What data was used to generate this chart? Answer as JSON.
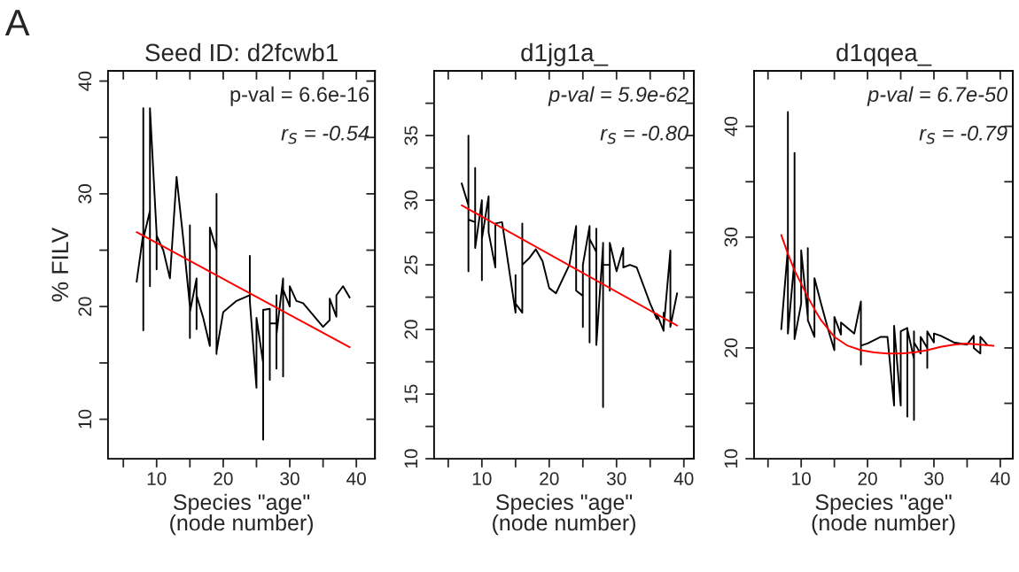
{
  "chart_data": [
    {
      "type": "line",
      "title": "Seed ID: d2fcwb1",
      "xlabel": "Species \"age\"\n(node number)",
      "ylabel": "% FILV",
      "annotations": [
        "A",
        "p-val = 6.6e-16",
        "r$_{S}$ = -0.54"
      ],
      "xlim": [
        2.7,
        42.8
      ],
      "ylim": [
        6.5,
        40.9
      ],
      "xticks": [
        {
          "value": 5,
          "label": null
        },
        10,
        {
          "value": 15,
          "label": null
        },
        20,
        {
          "value": 25,
          "label": null
        },
        30,
        {
          "value": 35,
          "label": null
        },
        40
      ],
      "yticks": [
        10,
        {
          "value": 15,
          "label": null
        },
        20,
        {
          "value": 25,
          "label": null
        },
        30,
        {
          "value": 35,
          "label": null
        },
        40
      ],
      "grid": false,
      "marker": "none",
      "line_style": "solid",
      "series": [
        {
          "color": "#000000",
          "x": [
            7,
            8,
            8,
            8,
            8,
            9,
            9,
            9,
            10,
            10,
            10,
            11,
            12,
            13,
            14,
            15,
            15,
            15,
            15,
            16,
            16,
            16,
            17,
            18,
            18,
            19,
            19,
            19,
            19,
            20,
            22,
            24,
            24,
            24,
            25,
            25,
            26,
            26,
            26,
            27,
            27,
            27,
            28,
            28,
            28,
            28,
            29,
            29,
            29,
            30,
            30,
            31,
            32,
            35,
            36,
            36,
            37,
            37,
            38,
            39
          ],
          "values": [
            22.2,
            26.5,
            37.6,
            17.9,
            26,
            28.5,
            21.8,
            37.6,
            26.5,
            23.3,
            26.3,
            25,
            22.5,
            31.5,
            26,
            20,
            27.2,
            17.2,
            19.5,
            22.5,
            18,
            21,
            19,
            16.5,
            27,
            25,
            15.8,
            30,
            16,
            19.5,
            20.5,
            21,
            24.5,
            20.5,
            12.8,
            19,
            15,
            8.2,
            19.7,
            19.8,
            13.5,
            18.5,
            18.5,
            14.5,
            21,
            17.5,
            22.5,
            13.8,
            21.5,
            20,
            21.8,
            20.5,
            20.3,
            18.2,
            18.8,
            20.7,
            19.1,
            21,
            21.8,
            20.8
          ]
        },
        {
          "color": "#ff0000",
          "x": [
            7,
            39
          ],
          "values": [
            26.6,
            16.4
          ]
        }
      ]
    },
    {
      "type": "line",
      "title": "d1jg1a_",
      "xlabel": "Species \"age\"\n(node number)",
      "annotations": [
        "p-val = 5.9e-62",
        "r$_{S}$ = -0.80"
      ],
      "xlim": [
        2.9,
        41.5
      ],
      "ylim": [
        10,
        40
      ],
      "xticks": [
        {
          "value": 5,
          "label": null
        },
        10,
        {
          "value": 15,
          "label": null
        },
        20,
        {
          "value": 25,
          "label": null
        },
        30,
        {
          "value": 35,
          "label": null
        },
        40
      ],
      "yticks": [
        10,
        {
          "value": 12.5,
          "label": null
        },
        15,
        {
          "value": 17.5,
          "label": null
        },
        20,
        {
          "value": 22.5,
          "label": null
        },
        25,
        {
          "value": 27.5,
          "label": null
        },
        30,
        {
          "value": 32.5,
          "label": null
        },
        35,
        {
          "value": 37.5,
          "label": null
        }
      ],
      "grid": false,
      "marker": "none",
      "line_style": "solid",
      "series": [
        {
          "color": "#000000",
          "x": [
            7,
            8,
            8,
            8,
            8,
            9,
            9,
            9,
            10,
            10,
            10,
            11,
            11,
            12,
            12,
            13,
            15,
            15,
            15,
            16,
            16,
            16,
            17,
            18,
            19,
            20,
            21,
            23,
            24,
            24,
            25,
            25,
            25,
            26,
            26,
            26,
            27,
            27,
            27,
            28,
            28,
            28,
            28,
            29,
            29,
            29,
            30,
            30,
            31,
            31,
            32,
            33,
            35,
            36,
            36,
            37,
            37,
            37,
            38,
            38,
            39
          ],
          "values": [
            31.3,
            29.6,
            35,
            24.5,
            28.5,
            28.3,
            32.5,
            26.3,
            30,
            23.8,
            27,
            30.3,
            27.5,
            24.8,
            28.2,
            28.3,
            21.3,
            24.2,
            22,
            21.3,
            28.2,
            25,
            25.5,
            26.2,
            25.3,
            23.2,
            22.8,
            25,
            28,
            23,
            22.6,
            20.2,
            25,
            28,
            19,
            27,
            26,
            27.8,
            18.8,
            26.5,
            14,
            26.7,
            25,
            25,
            23,
            26.7,
            24.5,
            24.5,
            26.3,
            24.8,
            25,
            24.8,
            22,
            20.8,
            21.2,
            19.9,
            21.3,
            20.1,
            26.1,
            20.2,
            22.8
          ]
        },
        {
          "color": "#ff0000",
          "x": [
            7,
            39
          ],
          "values": [
            29.6,
            20.3
          ]
        }
      ]
    },
    {
      "type": "line",
      "title": "d1qqea_",
      "xlabel": "Species \"age\"\n(node number)",
      "annotations": [
        "p-val = 6.7e-50",
        "r$_{S}$ = -0.79"
      ],
      "xlim": [
        2.9,
        41.9
      ],
      "ylim": [
        10,
        45
      ],
      "xticks": [
        {
          "value": 5,
          "label": null
        },
        10,
        {
          "value": 15,
          "label": null
        },
        20,
        {
          "value": 25,
          "label": null
        },
        30,
        {
          "value": 35,
          "label": null
        },
        40
      ],
      "yticks": [
        10,
        {
          "value": 15,
          "label": null
        },
        20,
        {
          "value": 25,
          "label": null
        },
        30,
        {
          "value": 35,
          "label": null
        },
        40
      ],
      "grid": false,
      "marker": "none",
      "line_style": "solid",
      "series": [
        {
          "color": "#000000",
          "x": [
            7,
            8,
            8,
            8,
            9,
            9,
            9,
            10,
            10,
            11,
            11,
            11,
            12,
            12,
            13,
            14,
            15,
            15,
            15,
            16,
            16,
            18,
            19,
            19,
            19,
            20,
            22,
            23,
            24,
            24,
            25,
            25,
            26,
            26,
            26,
            27,
            27,
            27,
            27,
            28,
            28,
            29,
            29,
            29,
            30,
            30,
            31,
            33,
            35,
            36,
            36,
            37,
            37,
            38
          ],
          "values": [
            21.7,
            29,
            41.3,
            21.3,
            28,
            37.6,
            20.8,
            24,
            28.8,
            22.8,
            29,
            22.5,
            21,
            26.3,
            24,
            21.8,
            19.8,
            21.5,
            22.8,
            21.2,
            22.3,
            21.3,
            24.2,
            18.5,
            20.2,
            20.4,
            21,
            21,
            14.8,
            22,
            14.8,
            21.5,
            21.8,
            13.8,
            21.7,
            19,
            21.5,
            13.5,
            20.5,
            19.5,
            21,
            20,
            18.2,
            21.5,
            20.5,
            21.3,
            21.1,
            20.5,
            20.3,
            21.1,
            20,
            19.5,
            21,
            20.3
          ]
        },
        {
          "color": "#ff0000",
          "x": [
            7,
            8,
            9,
            10,
            11,
            12,
            13,
            15,
            17,
            19,
            21,
            23,
            25,
            27,
            29,
            31,
            33,
            35,
            37,
            39
          ],
          "values": [
            30.2,
            28.5,
            27,
            25.8,
            24.6,
            23.5,
            22.5,
            21,
            20.2,
            19.8,
            19.6,
            19.5,
            19.5,
            19.6,
            19.8,
            20.1,
            20.3,
            20.4,
            20.3,
            20.2
          ]
        }
      ]
    }
  ]
}
